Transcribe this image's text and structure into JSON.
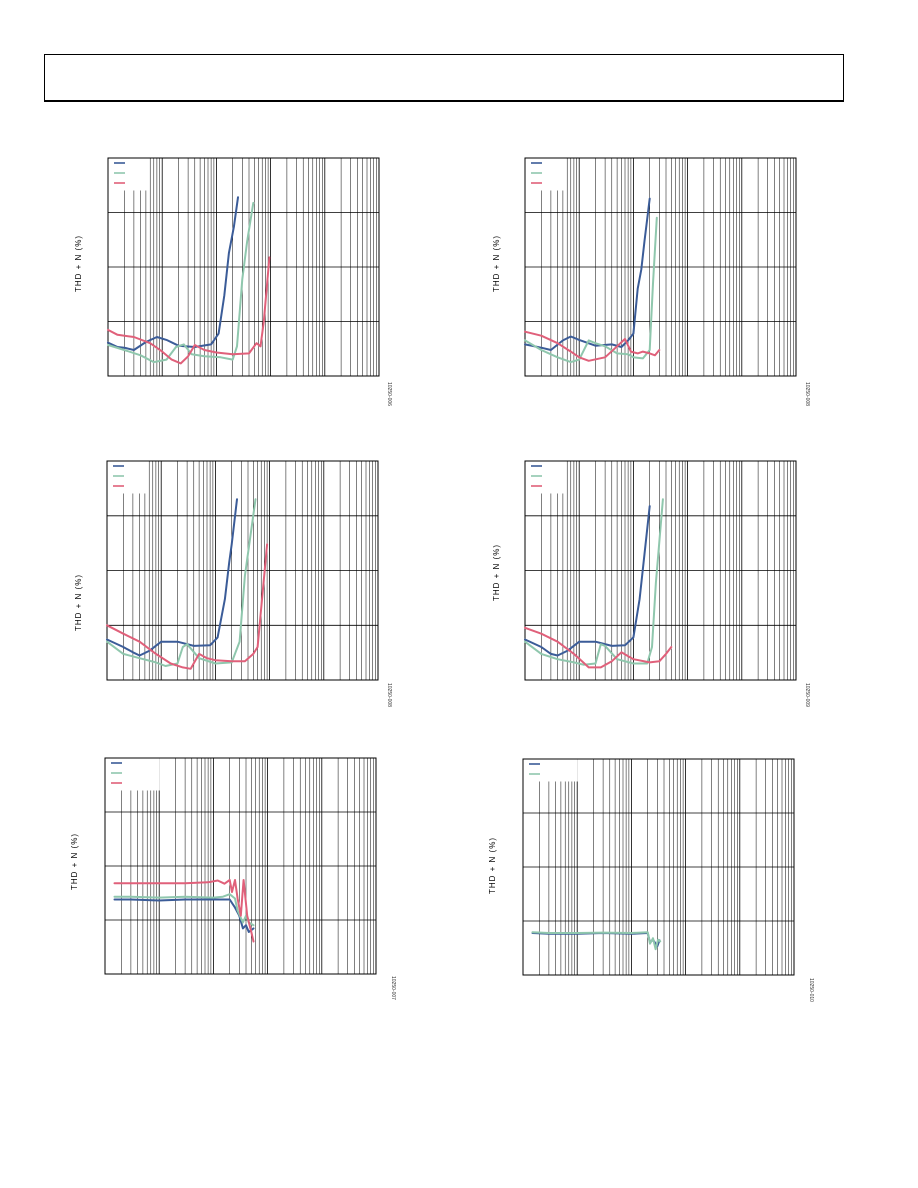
{
  "page": {
    "header_text": ""
  },
  "colors": {
    "blue": "#3b5c98",
    "green": "#8fc7ad",
    "red": "#e0607a"
  },
  "chart_data": [
    {
      "type": "line",
      "id": "tl",
      "ylabel": "THD + N (%)",
      "fignum": "10250-006",
      "xscale": "log",
      "xlim": [
        0.001,
        100
      ],
      "yscale": "log",
      "ylim": [
        0.01,
        100
      ],
      "series": [
        {
          "color": "blue",
          "points": [
            [
              0.001,
              0.041
            ],
            [
              0.0015,
              0.034
            ],
            [
              0.002,
              0.033
            ],
            [
              0.003,
              0.03
            ],
            [
              0.005,
              0.042
            ],
            [
              0.008,
              0.052
            ],
            [
              0.012,
              0.046
            ],
            [
              0.02,
              0.036
            ],
            [
              0.04,
              0.034
            ],
            [
              0.08,
              0.038
            ],
            [
              0.11,
              0.06
            ],
            [
              0.14,
              0.3
            ],
            [
              0.17,
              1.8
            ],
            [
              0.21,
              5.5
            ],
            [
              0.25,
              19
            ]
          ]
        },
        {
          "color": "green",
          "points": [
            [
              0.001,
              0.037
            ],
            [
              0.002,
              0.03
            ],
            [
              0.004,
              0.024
            ],
            [
              0.007,
              0.018
            ],
            [
              0.012,
              0.02
            ],
            [
              0.018,
              0.034
            ],
            [
              0.025,
              0.038
            ],
            [
              0.035,
              0.025
            ],
            [
              0.06,
              0.023
            ],
            [
              0.12,
              0.022
            ],
            [
              0.2,
              0.02
            ],
            [
              0.24,
              0.035
            ],
            [
              0.3,
              0.6
            ],
            [
              0.37,
              3
            ],
            [
              0.48,
              15
            ]
          ]
        },
        {
          "color": "red",
          "points": [
            [
              0.001,
              0.07
            ],
            [
              0.0015,
              0.057
            ],
            [
              0.003,
              0.052
            ],
            [
              0.006,
              0.04
            ],
            [
              0.01,
              0.028
            ],
            [
              0.015,
              0.02
            ],
            [
              0.022,
              0.017
            ],
            [
              0.03,
              0.023
            ],
            [
              0.04,
              0.037
            ],
            [
              0.06,
              0.03
            ],
            [
              0.1,
              0.027
            ],
            [
              0.2,
              0.025
            ],
            [
              0.4,
              0.026
            ],
            [
              0.55,
              0.04
            ],
            [
              0.65,
              0.035
            ],
            [
              0.75,
              0.1
            ],
            [
              0.95,
              1.5
            ]
          ]
        }
      ]
    },
    {
      "type": "line",
      "id": "tr",
      "ylabel": "THD + N (%)",
      "fignum": "10250-008",
      "xscale": "log",
      "xlim": [
        0.001,
        100
      ],
      "yscale": "log",
      "ylim": [
        0.01,
        100
      ],
      "series": [
        {
          "color": "blue",
          "points": [
            [
              0.001,
              0.038
            ],
            [
              0.002,
              0.033
            ],
            [
              0.003,
              0.03
            ],
            [
              0.005,
              0.045
            ],
            [
              0.007,
              0.053
            ],
            [
              0.01,
              0.046
            ],
            [
              0.02,
              0.036
            ],
            [
              0.04,
              0.038
            ],
            [
              0.06,
              0.034
            ],
            [
              0.08,
              0.045
            ],
            [
              0.1,
              0.06
            ],
            [
              0.12,
              0.4
            ],
            [
              0.14,
              0.9
            ],
            [
              0.16,
              3
            ],
            [
              0.2,
              18
            ]
          ]
        },
        {
          "color": "green",
          "points": [
            [
              0.001,
              0.045
            ],
            [
              0.002,
              0.03
            ],
            [
              0.004,
              0.022
            ],
            [
              0.007,
              0.018
            ],
            [
              0.01,
              0.02
            ],
            [
              0.015,
              0.045
            ],
            [
              0.02,
              0.04
            ],
            [
              0.03,
              0.035
            ],
            [
              0.05,
              0.026
            ],
            [
              0.08,
              0.025
            ],
            [
              0.1,
              0.022
            ],
            [
              0.15,
              0.021
            ],
            [
              0.2,
              0.03
            ],
            [
              0.23,
              0.5
            ],
            [
              0.27,
              8
            ]
          ]
        },
        {
          "color": "red",
          "points": [
            [
              0.001,
              0.065
            ],
            [
              0.002,
              0.055
            ],
            [
              0.004,
              0.04
            ],
            [
              0.007,
              0.028
            ],
            [
              0.01,
              0.022
            ],
            [
              0.015,
              0.019
            ],
            [
              0.03,
              0.022
            ],
            [
              0.05,
              0.035
            ],
            [
              0.07,
              0.048
            ],
            [
              0.09,
              0.028
            ],
            [
              0.12,
              0.026
            ],
            [
              0.15,
              0.028
            ],
            [
              0.2,
              0.026
            ],
            [
              0.25,
              0.024
            ],
            [
              0.3,
              0.03
            ]
          ]
        }
      ]
    },
    {
      "type": "line",
      "id": "ml",
      "ylabel": "THD + N (%)",
      "fignum": "10250-008",
      "xscale": "log",
      "xlim": [
        0.001,
        100
      ],
      "yscale": "log",
      "ylim": [
        0.01,
        100
      ],
      "series": [
        {
          "color": "blue",
          "points": [
            [
              0.001,
              0.055
            ],
            [
              0.002,
              0.04
            ],
            [
              0.003,
              0.032
            ],
            [
              0.004,
              0.028
            ],
            [
              0.006,
              0.034
            ],
            [
              0.01,
              0.05
            ],
            [
              0.02,
              0.05
            ],
            [
              0.04,
              0.042
            ],
            [
              0.08,
              0.043
            ],
            [
              0.11,
              0.06
            ],
            [
              0.15,
              0.3
            ],
            [
              0.18,
              1.4
            ],
            [
              0.2,
              3
            ],
            [
              0.25,
              20
            ]
          ]
        },
        {
          "color": "green",
          "points": [
            [
              0.001,
              0.05
            ],
            [
              0.002,
              0.03
            ],
            [
              0.004,
              0.025
            ],
            [
              0.008,
              0.021
            ],
            [
              0.012,
              0.018
            ],
            [
              0.02,
              0.02
            ],
            [
              0.025,
              0.04
            ],
            [
              0.03,
              0.045
            ],
            [
              0.05,
              0.025
            ],
            [
              0.1,
              0.02
            ],
            [
              0.2,
              0.021
            ],
            [
              0.28,
              0.05
            ],
            [
              0.35,
              0.8
            ],
            [
              0.55,
              20
            ]
          ]
        },
        {
          "color": "red",
          "points": [
            [
              0.001,
              0.1
            ],
            [
              0.002,
              0.07
            ],
            [
              0.004,
              0.05
            ],
            [
              0.008,
              0.03
            ],
            [
              0.015,
              0.02
            ],
            [
              0.025,
              0.017
            ],
            [
              0.035,
              0.016
            ],
            [
              0.05,
              0.03
            ],
            [
              0.07,
              0.025
            ],
            [
              0.1,
              0.023
            ],
            [
              0.2,
              0.022
            ],
            [
              0.35,
              0.022
            ],
            [
              0.5,
              0.03
            ],
            [
              0.6,
              0.04
            ],
            [
              0.9,
              3
            ]
          ]
        }
      ]
    },
    {
      "type": "line",
      "id": "mr",
      "ylabel": "THD + N (%)",
      "fignum": "10250-009",
      "xscale": "log",
      "xlim": [
        0.001,
        100
      ],
      "yscale": "log",
      "ylim": [
        0.01,
        100
      ],
      "series": [
        {
          "color": "blue",
          "points": [
            [
              0.001,
              0.055
            ],
            [
              0.002,
              0.04
            ],
            [
              0.003,
              0.03
            ],
            [
              0.004,
              0.028
            ],
            [
              0.006,
              0.034
            ],
            [
              0.01,
              0.05
            ],
            [
              0.02,
              0.05
            ],
            [
              0.04,
              0.042
            ],
            [
              0.07,
              0.043
            ],
            [
              0.1,
              0.06
            ],
            [
              0.13,
              0.3
            ],
            [
              0.16,
              2
            ],
            [
              0.2,
              15
            ]
          ]
        },
        {
          "color": "green",
          "points": [
            [
              0.001,
              0.05
            ],
            [
              0.002,
              0.03
            ],
            [
              0.004,
              0.024
            ],
            [
              0.008,
              0.021
            ],
            [
              0.012,
              0.019
            ],
            [
              0.02,
              0.02
            ],
            [
              0.025,
              0.045
            ],
            [
              0.03,
              0.042
            ],
            [
              0.05,
              0.024
            ],
            [
              0.1,
              0.02
            ],
            [
              0.18,
              0.02
            ],
            [
              0.22,
              0.04
            ],
            [
              0.26,
              0.6
            ],
            [
              0.35,
              20
            ]
          ]
        },
        {
          "color": "red",
          "points": [
            [
              0.001,
              0.09
            ],
            [
              0.002,
              0.07
            ],
            [
              0.004,
              0.05
            ],
            [
              0.008,
              0.03
            ],
            [
              0.015,
              0.017
            ],
            [
              0.025,
              0.017
            ],
            [
              0.04,
              0.022
            ],
            [
              0.06,
              0.032
            ],
            [
              0.1,
              0.024
            ],
            [
              0.2,
              0.021
            ],
            [
              0.3,
              0.022
            ],
            [
              0.4,
              0.03
            ],
            [
              0.5,
              0.04
            ]
          ]
        }
      ]
    },
    {
      "type": "line",
      "id": "bl",
      "ylabel": "THD + N (%)",
      "fignum": "10250-007",
      "xscale": "log",
      "xlim": [
        0.001,
        100
      ],
      "yscale": "log",
      "ylim": [
        0.0001,
        1
      ],
      "series": [
        {
          "color": "blue",
          "points": [
            [
              0.0015,
              0.0024
            ],
            [
              0.003,
              0.0024
            ],
            [
              0.01,
              0.0023
            ],
            [
              0.03,
              0.0024
            ],
            [
              0.1,
              0.0024
            ],
            [
              0.2,
              0.0024
            ],
            [
              0.25,
              0.0017
            ],
            [
              0.3,
              0.0012
            ],
            [
              0.35,
              0.0007
            ],
            [
              0.4,
              0.0008
            ],
            [
              0.45,
              0.0006
            ],
            [
              0.55,
              0.0007
            ]
          ]
        },
        {
          "color": "green",
          "points": [
            [
              0.0015,
              0.0027
            ],
            [
              0.003,
              0.0027
            ],
            [
              0.01,
              0.0026
            ],
            [
              0.03,
              0.0027
            ],
            [
              0.1,
              0.0026
            ],
            [
              0.15,
              0.0027
            ],
            [
              0.2,
              0.003
            ],
            [
              0.25,
              0.0025
            ],
            [
              0.28,
              0.0015
            ],
            [
              0.35,
              0.0009
            ],
            [
              0.4,
              0.0012
            ],
            [
              0.45,
              0.0009
            ],
            [
              0.55,
              0.0008
            ]
          ]
        },
        {
          "color": "red",
          "points": [
            [
              0.0015,
              0.0048
            ],
            [
              0.003,
              0.0048
            ],
            [
              0.01,
              0.0048
            ],
            [
              0.03,
              0.0048
            ],
            [
              0.08,
              0.005
            ],
            [
              0.12,
              0.0054
            ],
            [
              0.16,
              0.0047
            ],
            [
              0.2,
              0.0055
            ],
            [
              0.22,
              0.0033
            ],
            [
              0.25,
              0.0055
            ],
            [
              0.28,
              0.0025
            ],
            [
              0.32,
              0.0012
            ],
            [
              0.36,
              0.0055
            ],
            [
              0.42,
              0.0012
            ],
            [
              0.5,
              0.0006
            ],
            [
              0.55,
              0.0004
            ]
          ]
        }
      ]
    },
    {
      "type": "line",
      "id": "br",
      "ylabel": "THD + N (%)",
      "fignum": "10250-010",
      "xscale": "log",
      "xlim": [
        0.001,
        100
      ],
      "yscale": "log",
      "ylim": [
        0.0001,
        1
      ],
      "series": [
        {
          "color": "blue",
          "points": [
            [
              0.0015,
              0.0006
            ],
            [
              0.003,
              0.00058
            ],
            [
              0.01,
              0.00058
            ],
            [
              0.03,
              0.0006
            ],
            [
              0.1,
              0.00058
            ],
            [
              0.2,
              0.0006
            ],
            [
              0.22,
              0.0004
            ],
            [
              0.25,
              0.00045
            ],
            [
              0.3,
              0.00034
            ],
            [
              0.33,
              0.00044
            ]
          ]
        },
        {
          "color": "green",
          "points": [
            [
              0.0015,
              0.00062
            ],
            [
              0.003,
              0.0006
            ],
            [
              0.01,
              0.0006
            ],
            [
              0.03,
              0.00061
            ],
            [
              0.1,
              0.0006
            ],
            [
              0.2,
              0.00062
            ],
            [
              0.22,
              0.00038
            ],
            [
              0.25,
              0.00048
            ],
            [
              0.28,
              0.0003
            ],
            [
              0.31,
              0.00045
            ],
            [
              0.34,
              0.00042
            ]
          ]
        }
      ]
    }
  ]
}
